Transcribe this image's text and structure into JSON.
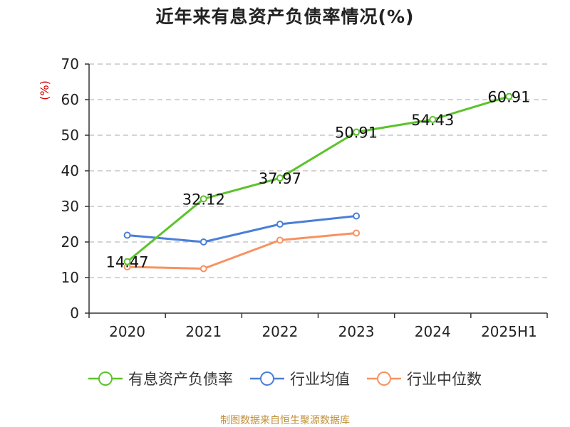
{
  "colors": {
    "company": "#5cc22c",
    "industry_avg": "#4a7fd8",
    "industry_median": "#f79260",
    "grid": "#bbbbbb",
    "axis": "#333333",
    "source": "#c0913a",
    "ylabel": "#d40000"
  },
  "source_note": "制图数据来自恒生聚源数据库",
  "chart_data": {
    "type": "line",
    "title": "近年来有息资产负债率情况(%)",
    "xlabel": "",
    "ylabel": "(%)",
    "categories": [
      "2020",
      "2021",
      "2022",
      "2023",
      "2024",
      "2025H1"
    ],
    "ylim": [
      0,
      70
    ],
    "yticks": [
      0,
      10,
      20,
      30,
      40,
      50,
      60,
      70
    ],
    "grid": true,
    "legend_position": "bottom",
    "series": [
      {
        "name": "有息资产负债率",
        "color": "#5cc22c",
        "values": [
          14.47,
          32.12,
          37.97,
          50.91,
          54.43,
          60.91
        ],
        "labels": [
          "14.47",
          "32.12",
          "37.97",
          "50.91",
          "54.43",
          "60.91"
        ]
      },
      {
        "name": "行业均值",
        "color": "#4a7fd8",
        "values": [
          21.9,
          20.0,
          25.0,
          27.3,
          null,
          null
        ]
      },
      {
        "name": "行业中位数",
        "color": "#f79260",
        "values": [
          13.0,
          12.5,
          20.5,
          22.5,
          null,
          null
        ]
      }
    ]
  }
}
